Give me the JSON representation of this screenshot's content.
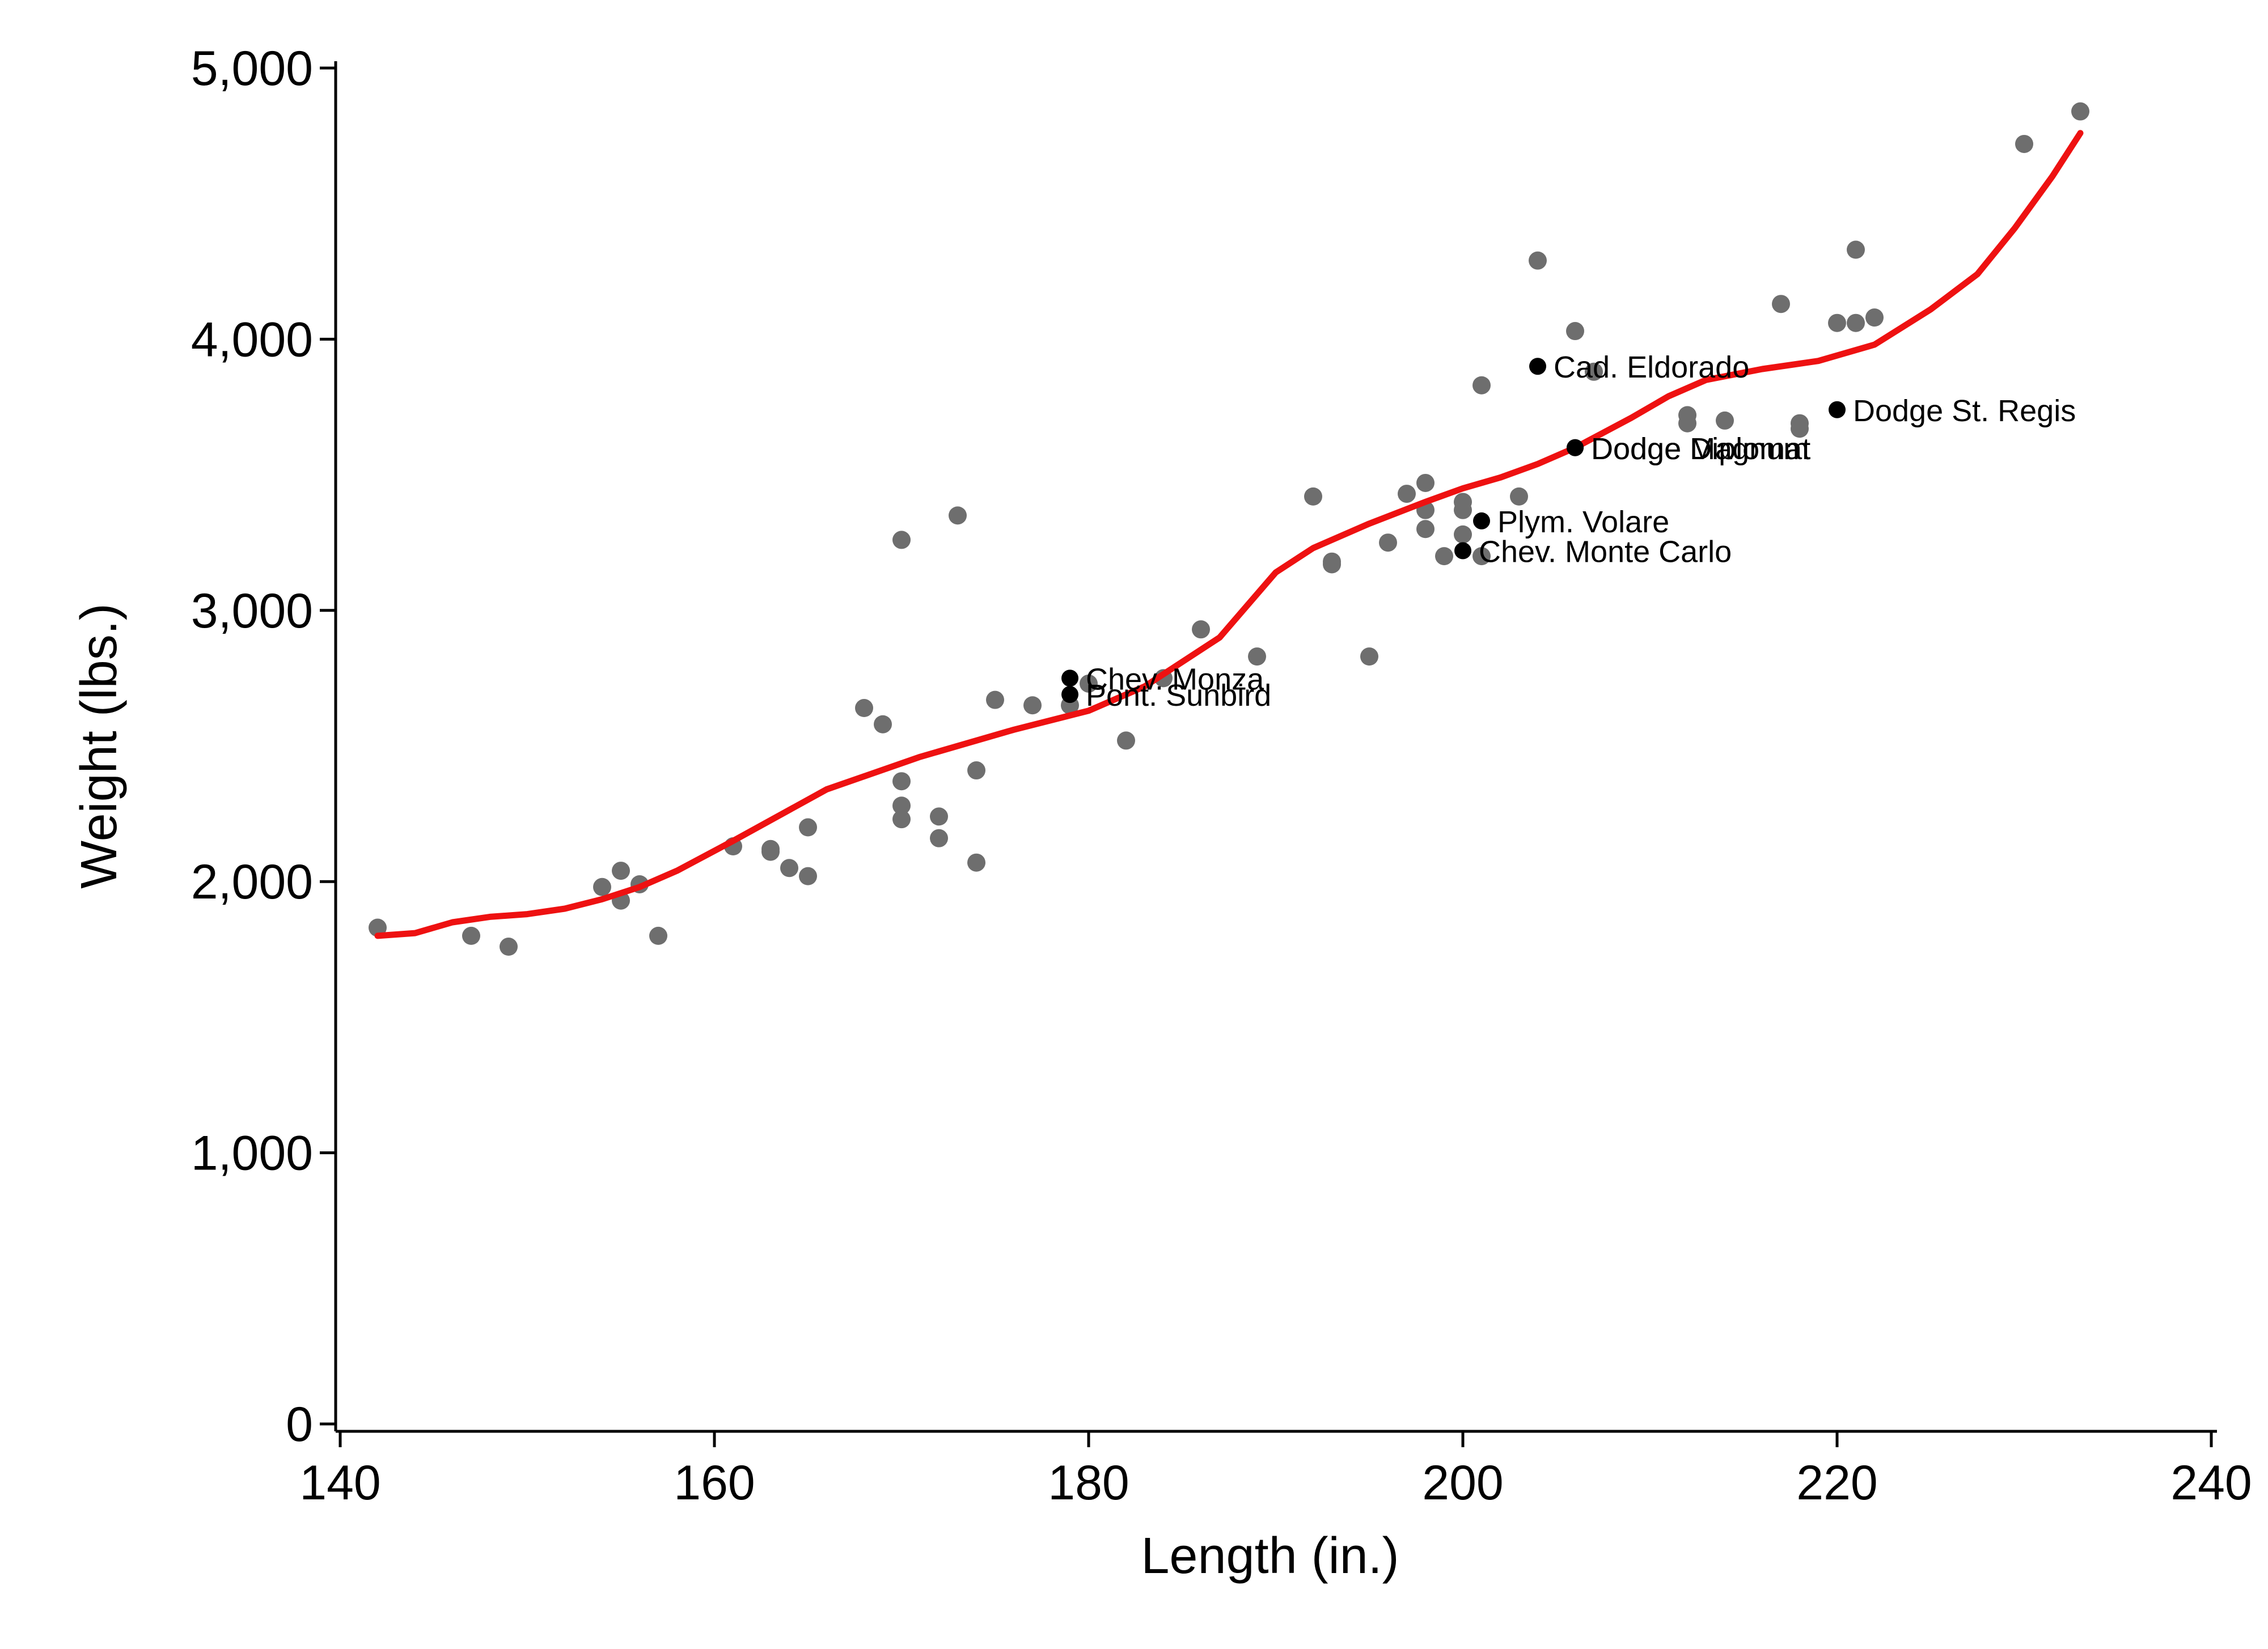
{
  "chart_data": {
    "type": "scatter",
    "title": "",
    "xlabel": "Length (in.)",
    "ylabel": "Weight (lbs.)",
    "xlim": [
      140,
      240
    ],
    "ylim": [
      0,
      5000
    ],
    "x_ticks": [
      140,
      160,
      180,
      200,
      220,
      240
    ],
    "x_tick_labels": [
      "140",
      "160",
      "180",
      "200",
      "220",
      "240"
    ],
    "y_ticks": [
      0,
      1000,
      2000,
      3000,
      4000,
      5000
    ],
    "y_tick_labels": [
      "0",
      "1,000",
      "2,000",
      "3,000",
      "4,000",
      "5,000"
    ],
    "grid": false,
    "colors": {
      "points": "#6e6e6e",
      "highlight": "#000000",
      "fit": "#ee1111"
    },
    "points": [
      [
        142,
        1830
      ],
      [
        147,
        1800
      ],
      [
        149,
        1760
      ],
      [
        154,
        1980
      ],
      [
        155,
        1930
      ],
      [
        155,
        2040
      ],
      [
        156,
        1990
      ],
      [
        157,
        1800
      ],
      [
        161,
        2130
      ],
      [
        163,
        2110
      ],
      [
        163,
        2120
      ],
      [
        164,
        2050
      ],
      [
        165,
        2020
      ],
      [
        165,
        2200
      ],
      [
        168,
        2640
      ],
      [
        169,
        2580
      ],
      [
        170,
        2230
      ],
      [
        170,
        2280
      ],
      [
        170,
        2370
      ],
      [
        170,
        3260
      ],
      [
        172,
        2160
      ],
      [
        172,
        2240
      ],
      [
        173,
        3350
      ],
      [
        174,
        2070
      ],
      [
        174,
        2410
      ],
      [
        175,
        2670
      ],
      [
        177,
        2650
      ],
      [
        179,
        2650
      ],
      [
        180,
        2730
      ],
      [
        182,
        2520
      ],
      [
        184,
        2750
      ],
      [
        186,
        2930
      ],
      [
        189,
        2830
      ],
      [
        192,
        3420
      ],
      [
        193,
        3170
      ],
      [
        193,
        3180
      ],
      [
        195,
        2830
      ],
      [
        196,
        3250
      ],
      [
        197,
        3430
      ],
      [
        198,
        3300
      ],
      [
        198,
        3370
      ],
      [
        198,
        3470
      ],
      [
        199,
        3200
      ],
      [
        200,
        3280
      ],
      [
        200,
        3370
      ],
      [
        200,
        3400
      ],
      [
        201,
        3200
      ],
      [
        201,
        3830
      ],
      [
        203,
        3420
      ],
      [
        204,
        4290
      ],
      [
        206,
        4030
      ],
      [
        207,
        3880
      ],
      [
        212,
        3690
      ],
      [
        212,
        3720
      ],
      [
        214,
        3700
      ],
      [
        217,
        4130
      ],
      [
        218,
        3670
      ],
      [
        218,
        3690
      ],
      [
        220,
        4060
      ],
      [
        221,
        4060
      ],
      [
        221,
        4330
      ],
      [
        222,
        4080
      ],
      [
        230,
        4720
      ],
      [
        233,
        4840
      ]
    ],
    "labeled_points": [
      {
        "name": "Chev. Monza",
        "x": 179,
        "y": 2750
      },
      {
        "name": "Pont. Sunbird",
        "x": 179,
        "y": 2690
      },
      {
        "name": "Cad. Eldorado",
        "x": 204,
        "y": 3900
      },
      {
        "name": "Dodge St. Regis",
        "x": 220,
        "y": 3740
      },
      {
        "name": "Dodge Magnum",
        "x": 206,
        "y": 3600
      },
      {
        "name": "Dodge Diplomat",
        "x": 206,
        "y": 3600
      },
      {
        "name": "Plym. Volare",
        "x": 201,
        "y": 3330
      },
      {
        "name": "Chev. Monte Carlo",
        "x": 200,
        "y": 3220
      }
    ],
    "fit_line": {
      "x": [
        142,
        144,
        146,
        148,
        150,
        152,
        154,
        156,
        158,
        161,
        166,
        171,
        176,
        180,
        183,
        187,
        190,
        192,
        195,
        198,
        200,
        202,
        204,
        206,
        209,
        211,
        213,
        216,
        219,
        222,
        225,
        227.5,
        229.5,
        231.5,
        233
      ],
      "y": [
        1800,
        1810,
        1850,
        1870,
        1880,
        1900,
        1935,
        1980,
        2040,
        2150,
        2340,
        2460,
        2560,
        2630,
        2720,
        2900,
        3140,
        3230,
        3320,
        3400,
        3450,
        3490,
        3540,
        3600,
        3710,
        3790,
        3850,
        3890,
        3920,
        3980,
        4110,
        4240,
        4410,
        4600,
        4760
      ]
    }
  }
}
